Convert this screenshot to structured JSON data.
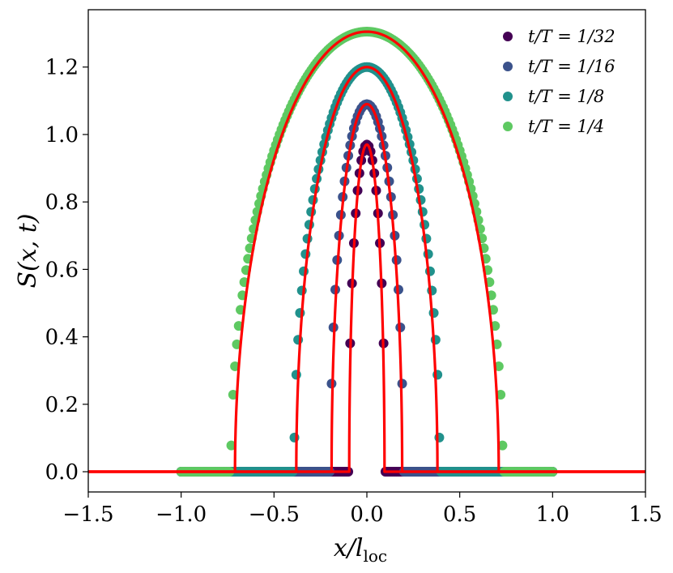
{
  "chart_data": {
    "type": "scatter",
    "xlabel": "x/l",
    "xlabel_sub": "loc",
    "ylabel": "S(x, t)",
    "xlim": [
      -1.5,
      1.5
    ],
    "ylim": [
      -0.06,
      1.37
    ],
    "xticks": [
      "−1.5",
      "−1.0",
      "−0.5",
      "0.0",
      "0.5",
      "1.0",
      "1.5"
    ],
    "xtick_values": [
      -1.5,
      -1.0,
      -0.5,
      0.0,
      0.5,
      1.0,
      1.5
    ],
    "yticks": [
      "0.0",
      "0.2",
      "0.4",
      "0.6",
      "0.8",
      "1.0",
      "1.2"
    ],
    "ytick_values": [
      0.0,
      0.2,
      0.4,
      0.6,
      0.8,
      1.0,
      1.2
    ],
    "grid": false,
    "legend_position": "top-right",
    "x_sample_range": [
      -1.0,
      1.0
    ],
    "x_sample_step": 0.01,
    "series": [
      {
        "name": "t/T = 1/32",
        "color": "#440154",
        "half_width": 0.095,
        "peak": 0.97
      },
      {
        "name": "t/T = 1/16",
        "color": "#3b528b",
        "half_width": 0.19,
        "peak": 1.09
      },
      {
        "name": "t/T = 1/8",
        "color": "#21918c",
        "half_width": 0.38,
        "peak": 1.2
      },
      {
        "name": "t/T = 1/4",
        "color": "#5ec962",
        "half_width": 0.71,
        "peak": 1.305
      }
    ],
    "theory_curve_color": "#ff0000"
  }
}
